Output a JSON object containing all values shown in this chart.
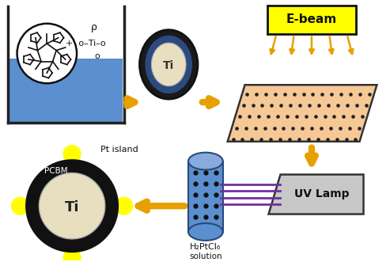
{
  "bg_color": "#ffffff",
  "arrow_color": "#e8a000",
  "ebeam_box_color": "#ffff00",
  "ebeam_text": "E-beam",
  "uvlamp_box_color": "#c8c8c8",
  "uvlamp_text": "UV Lamp",
  "ball_fill": "#ffffff",
  "ball_stroke": "#111111",
  "beaker_water_color": "#5b8fcf",
  "particle_inner_color": "#e8dfc0",
  "particle_outer_color": "#1a1a1a",
  "particle_mid_color": "#2a4a80",
  "sheet_color": "#f5c896",
  "sheet_dot_color": "#222222",
  "cylinder_color": "#5b8fcf",
  "cylinder_dark_color": "#2a4a7a",
  "cylinder_top_color": "#88aadd",
  "cylinder_dot_color": "#111111",
  "pcbm_outer_color": "#111111",
  "pcbm_inner_color": "#e8dfc0",
  "pcbm_yellow_color": "#ffff00",
  "pt_island_text": "Pt island",
  "pcbm_text": "PCBM",
  "ti_text": "Ti",
  "h2ptcl6_text": "H₂PtCl₆",
  "solution_text": "solution",
  "purple_line_color": "#7030a0",
  "rho_text": "ρ"
}
